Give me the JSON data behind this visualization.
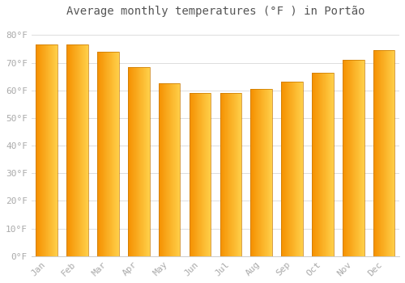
{
  "months": [
    "Jan",
    "Feb",
    "Mar",
    "Apr",
    "May",
    "Jun",
    "Jul",
    "Aug",
    "Sep",
    "Oct",
    "Nov",
    "Dec"
  ],
  "values": [
    76.5,
    76.5,
    74.0,
    68.5,
    62.5,
    59.0,
    59.0,
    60.5,
    63.0,
    66.5,
    71.0,
    74.5
  ],
  "title": "Average monthly temperatures (°F ) in Portão",
  "bar_color_left": "#F59000",
  "bar_color_right": "#FFD04A",
  "bar_outline_color": "#C87800",
  "background_color": "#FFFFFF",
  "grid_color": "#DDDDDD",
  "yticks": [
    0,
    10,
    20,
    30,
    40,
    50,
    60,
    70,
    80
  ],
  "ylim": [
    0,
    85
  ],
  "font_color": "#AAAAAA",
  "title_color": "#555555",
  "title_fontsize": 10,
  "tick_fontsize": 8
}
